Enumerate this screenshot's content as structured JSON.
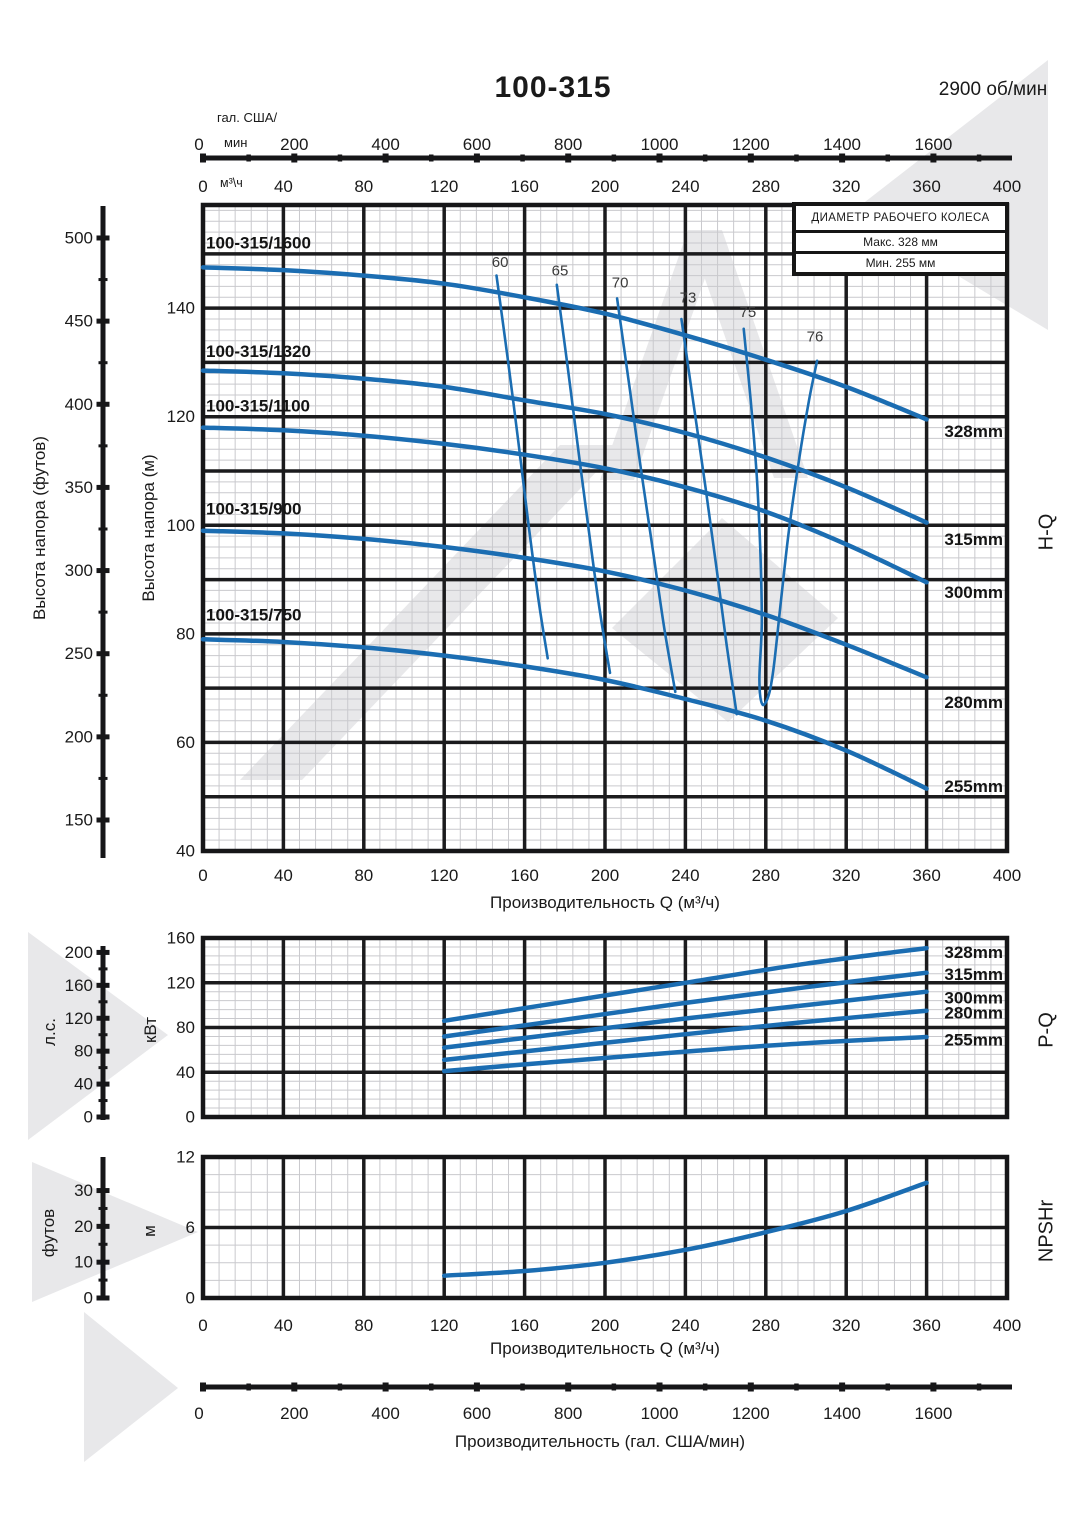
{
  "title": "100-315",
  "speed": "2900 об/мин",
  "legend": {
    "header": "ДИАМЕТР РАБОЧЕГО КОЛЕСА",
    "max": "Макс. 328 мм",
    "min": "Мин. 255 мм"
  },
  "labels": {
    "gal_unit_line1": "гал. США/",
    "gal_unit_line2": "мин",
    "m3h_unit": "м³\\ч",
    "ylabel_ft": "Высота напора (футов)",
    "ylabel_m": "Высота напора (м)",
    "hp": "л.с.",
    "kw": "кВт",
    "ft": "футов",
    "m": "м",
    "hq": "H-Q",
    "pq": "P-Q",
    "npshr": "NPSHr",
    "q_title": "Производительность Q (м³/ч)",
    "q_title_npsh": "Производительность Q (м³/ч)",
    "gal_title": "Производительность (гал. США/мин)"
  },
  "chart_data": [
    {
      "id": "hq",
      "type": "line",
      "side_label": "H-Q",
      "xlabel": "Производительность Q (м³/ч)",
      "ylabel_m": "Высота напора (м)",
      "x_range": [
        0,
        400
      ],
      "y_range_m": [
        40,
        159
      ],
      "grid": "on",
      "x_ticks": [
        0,
        40,
        80,
        120,
        160,
        200,
        240,
        280,
        320,
        360,
        400
      ],
      "y_ticks_m": [
        40,
        60,
        80,
        100,
        120,
        140
      ],
      "ft_axis": {
        "label": "Высота напора (футов)",
        "ticks": [
          150,
          200,
          250,
          300,
          350,
          400,
          450,
          500
        ]
      },
      "series": [
        {
          "model": "100-315/1600",
          "diameter": "328mm",
          "model_at": [
            1.5,
            151
          ],
          "diameter_at": [
            363,
            117.2
          ],
          "points": [
            [
              0,
              147.5
            ],
            [
              40,
              147
            ],
            [
              80,
              146
            ],
            [
              120,
              144.5
            ],
            [
              160,
              142
            ],
            [
              200,
              139
            ],
            [
              240,
              135
            ],
            [
              280,
              130.5
            ],
            [
              320,
              125.5
            ],
            [
              360,
              119.5
            ]
          ]
        },
        {
          "model": "100-315/1320",
          "diameter": "315mm",
          "model_at": [
            1.5,
            131
          ],
          "diameter_at": [
            363,
            97.3
          ],
          "points": [
            [
              0,
              128.5
            ],
            [
              40,
              128
            ],
            [
              80,
              127
            ],
            [
              120,
              125.5
            ],
            [
              160,
              123
            ],
            [
              200,
              120.5
            ],
            [
              240,
              117
            ],
            [
              280,
              112.5
            ],
            [
              320,
              107
            ],
            [
              360,
              100.5
            ]
          ]
        },
        {
          "model": "100-315/1100",
          "diameter": "300mm",
          "model_at": [
            1.5,
            121
          ],
          "diameter_at": [
            363,
            87.5
          ],
          "points": [
            [
              0,
              118
            ],
            [
              40,
              117.5
            ],
            [
              80,
              116.5
            ],
            [
              120,
              115
            ],
            [
              160,
              113
            ],
            [
              200,
              110.5
            ],
            [
              240,
              107
            ],
            [
              280,
              102.5
            ],
            [
              320,
              96.5
            ],
            [
              360,
              89.5
            ]
          ]
        },
        {
          "model": "100-315/900",
          "diameter": "280mm",
          "model_at": [
            1.5,
            102
          ],
          "diameter_at": [
            363,
            67.3
          ],
          "points": [
            [
              0,
              99
            ],
            [
              40,
              98.5
            ],
            [
              80,
              97.5
            ],
            [
              120,
              96
            ],
            [
              160,
              94
            ],
            [
              200,
              91.5
            ],
            [
              240,
              88
            ],
            [
              280,
              83.5
            ],
            [
              320,
              78
            ],
            [
              360,
              72
            ]
          ]
        },
        {
          "model": "100-315/750",
          "diameter": "255mm",
          "model_at": [
            1.5,
            82.5
          ],
          "diameter_at": [
            363,
            51.8
          ],
          "points": [
            [
              0,
              79
            ],
            [
              40,
              78.5
            ],
            [
              80,
              77.5
            ],
            [
              120,
              76
            ],
            [
              160,
              74
            ],
            [
              200,
              71.5
            ],
            [
              240,
              68
            ],
            [
              280,
              64
            ],
            [
              320,
              58.5
            ],
            [
              360,
              51.5
            ]
          ]
        }
      ],
      "efficiency": {
        "labels": [
          {
            "text": "60",
            "at": [
              147.8,
              147.6
            ]
          },
          {
            "text": "65",
            "at": [
              177.6,
              146.0
            ]
          },
          {
            "text": "70",
            "at": [
              207.5,
              143.8
            ]
          },
          {
            "text": "73",
            "at": [
              241.3,
              141.0
            ]
          },
          {
            "text": "75",
            "at": [
              271.1,
              138.4
            ]
          },
          {
            "text": "76",
            "at": [
              304.5,
              133.9
            ]
          }
        ],
        "lines": [
          {
            "name": "60",
            "points": [
              [
                146,
                146
              ],
              [
                151.5,
                131
              ],
              [
                157,
                115
              ],
              [
                162,
                100
              ],
              [
                167,
                86
              ],
              [
                171.5,
                75.5
              ]
            ]
          },
          {
            "name": "65",
            "points": [
              [
                176,
                144.3
              ],
              [
                181.5,
                129
              ],
              [
                187,
                113
              ],
              [
                192.5,
                97.5
              ],
              [
                197.5,
                84
              ],
              [
                202.5,
                72.8
              ]
            ]
          },
          {
            "name": "70",
            "points": [
              [
                206,
                141.8
              ],
              [
                212,
                126
              ],
              [
                218,
                110
              ],
              [
                224,
                95
              ],
              [
                229.5,
                81
              ],
              [
                235,
                69.3
              ]
            ]
          },
          {
            "name": "73",
            "points": [
              [
                238,
                138
              ],
              [
                244,
                122.5
              ],
              [
                250,
                107
              ],
              [
                255.5,
                92
              ],
              [
                260.5,
                78
              ],
              [
                265.5,
                65.2
              ]
            ]
          },
          {
            "name": "75-76",
            "points": [
              [
                269,
                136.2
              ],
              [
                272.5,
                123
              ],
              [
                275.5,
                109
              ],
              [
                277.3,
                95
              ],
              [
                278,
                82
              ],
              [
                276.8,
                71.5
              ],
              [
                278.3,
                67
              ],
              [
                281.5,
                68.8
              ],
              [
                284,
                74
              ],
              [
                287.5,
                86
              ],
              [
                291.5,
                99
              ],
              [
                296.5,
                112
              ],
              [
                301.5,
                123
              ],
              [
                305.5,
                130.3
              ]
            ]
          }
        ]
      }
    },
    {
      "id": "pq",
      "type": "line",
      "side_label": "P-Q",
      "y_range_kw": [
        0,
        160
      ],
      "y_ticks_kw": [
        0,
        40,
        80,
        120,
        160
      ],
      "ylabel_kw": "кВт",
      "hp_axis": {
        "label": "л.с.",
        "ticks": [
          0,
          40,
          80,
          120,
          160,
          200
        ]
      },
      "series": [
        {
          "diameter": "328mm",
          "label_kw": 146.5,
          "points": [
            [
              120,
              86
            ],
            [
              180,
              103
            ],
            [
              240,
              120
            ],
            [
              300,
              137
            ],
            [
              360,
              151
            ]
          ]
        },
        {
          "diameter": "315mm",
          "label_kw": 127,
          "points": [
            [
              120,
              72
            ],
            [
              180,
              87
            ],
            [
              240,
              102
            ],
            [
              300,
              116
            ],
            [
              360,
              129
            ]
          ]
        },
        {
          "diameter": "300mm",
          "label_kw": 106,
          "points": [
            [
              120,
              62
            ],
            [
              180,
              75
            ],
            [
              240,
              88
            ],
            [
              300,
              100
            ],
            [
              360,
              112
            ]
          ]
        },
        {
          "diameter": "280mm",
          "label_kw": 92.5,
          "points": [
            [
              120,
              51
            ],
            [
              180,
              62.5
            ],
            [
              240,
              74
            ],
            [
              300,
              85
            ],
            [
              360,
              95
            ]
          ]
        },
        {
          "diameter": "255mm",
          "label_kw": 68.5,
          "points": [
            [
              120,
              41
            ],
            [
              180,
              50
            ],
            [
              240,
              58.5
            ],
            [
              300,
              66
            ],
            [
              360,
              71.5
            ]
          ]
        }
      ]
    },
    {
      "id": "npsh",
      "type": "line",
      "side_label": "NPSHr",
      "xlabel": "Производительность Q (м³/ч)",
      "y_range_m": [
        0,
        12
      ],
      "y_ticks_m": [
        0,
        6,
        12
      ],
      "ylabel_m": "м",
      "ft_axis": {
        "label": "футов",
        "ticks": [
          0,
          10,
          20,
          30
        ]
      },
      "x_ticks": [
        0,
        40,
        80,
        120,
        160,
        200,
        240,
        280,
        320,
        360,
        400
      ],
      "series": [
        {
          "name": "NPSHr",
          "points": [
            [
              120,
              1.9
            ],
            [
              160,
              2.3
            ],
            [
              200,
              3.0
            ],
            [
              240,
              4.1
            ],
            [
              280,
              5.6
            ],
            [
              320,
              7.4
            ],
            [
              360,
              9.8
            ]
          ]
        }
      ]
    },
    {
      "id": "gal_top",
      "type": "axis",
      "unit": "гал. США/мин",
      "ticks": [
        0,
        200,
        400,
        600,
        800,
        1000,
        1200,
        1400,
        1600
      ],
      "minor_step": 100,
      "minor_max": 1700
    },
    {
      "id": "m3h_top",
      "type": "axis",
      "unit": "м³\\ч",
      "ticks": [
        0,
        40,
        80,
        120,
        160,
        200,
        240,
        280,
        320,
        360,
        400
      ]
    },
    {
      "id": "gal_bottom",
      "type": "axis",
      "title": "Производительность (гал. США/мин)",
      "ticks": [
        0,
        200,
        400,
        600,
        800,
        1000,
        1200,
        1400,
        1600
      ],
      "minor_step": 100,
      "minor_max": 1700
    }
  ],
  "style": {
    "curve_color": "#1b6db2",
    "grid_major_color": "#1b1b1d",
    "grid_fine_color": "#c9c9cd",
    "watermark_color": "#e8e8ea",
    "text_color": "#1a1a1a"
  }
}
